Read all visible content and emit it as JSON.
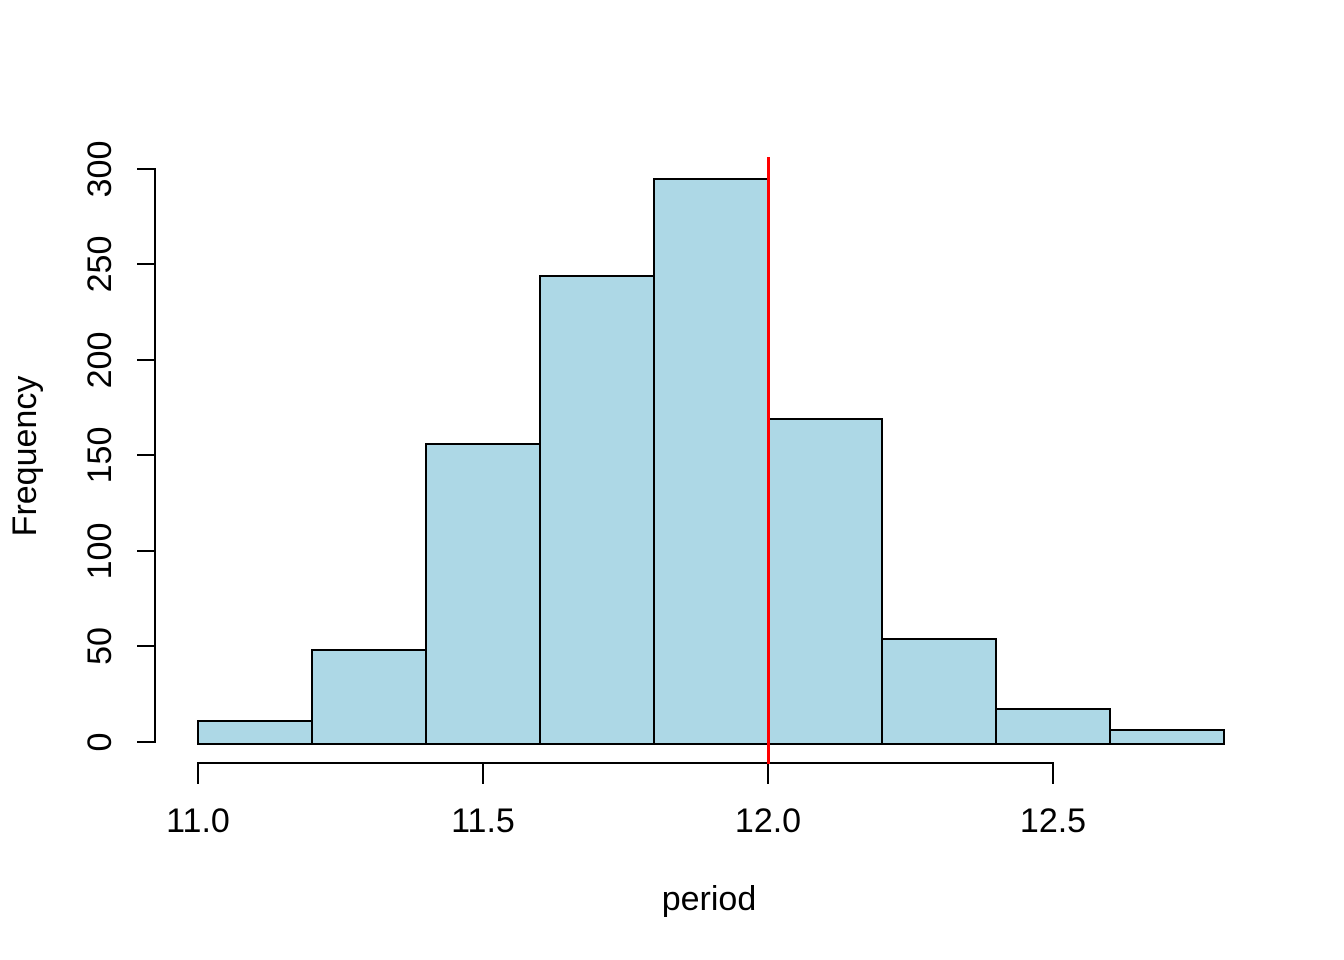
{
  "chart_data": {
    "type": "bar",
    "subtype": "histogram",
    "title": "",
    "xlabel": "period",
    "ylabel": "Frequency",
    "bin_edges": [
      11.0,
      11.2,
      11.4,
      11.6,
      11.8,
      12.0,
      12.2,
      12.4,
      12.6,
      12.8
    ],
    "counts": [
      11,
      48,
      156,
      244,
      295,
      169,
      54,
      17,
      6
    ],
    "total_n": 1000,
    "xlim": [
      11.0,
      12.8
    ],
    "ylim": [
      0,
      300
    ],
    "x_tick_values": [
      11.0,
      11.5,
      12.0,
      12.5
    ],
    "x_tick_labels": [
      "11.0",
      "11.5",
      "12.0",
      "12.5"
    ],
    "y_tick_values": [
      0,
      50,
      100,
      150,
      200,
      250,
      300
    ],
    "y_tick_labels": [
      "0",
      "50",
      "100",
      "150",
      "200",
      "250",
      "300"
    ],
    "grid": false,
    "legend": null,
    "vline": {
      "x": 12.0,
      "color": "#FF0000"
    },
    "colors": {
      "bar_fill": "#ADD8E6",
      "bar_border": "#000000",
      "axis": "#000000",
      "background": "#FFFFFF",
      "reference_line": "#FF0000"
    }
  }
}
